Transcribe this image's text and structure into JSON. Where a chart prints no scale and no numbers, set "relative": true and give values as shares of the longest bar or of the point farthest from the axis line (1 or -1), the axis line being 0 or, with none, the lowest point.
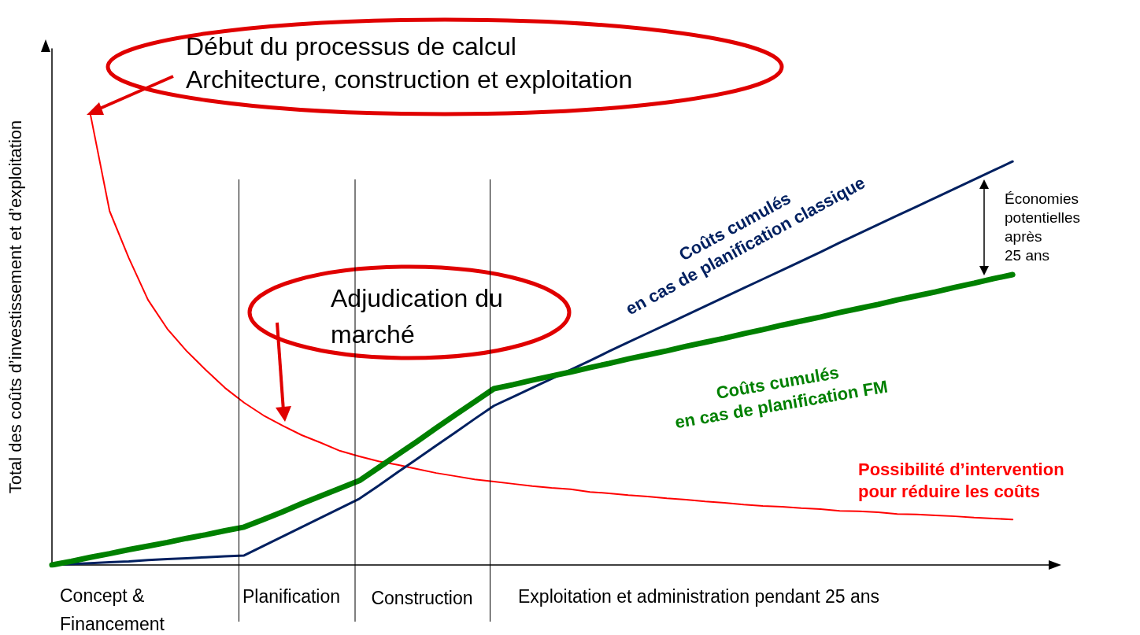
{
  "chart_data": {
    "type": "line",
    "relative": true,
    "ylabel": "Total des coûts d’investissement et d’exploitation",
    "legend": false,
    "grid": false,
    "marker": "none",
    "line_style": "solid",
    "categories": [
      null,
      null,
      null,
      null,
      null,
      null,
      null,
      null,
      null,
      null,
      null,
      null,
      null,
      null,
      null,
      null,
      null,
      null,
      null,
      null,
      null,
      null,
      null,
      null,
      null,
      null,
      null,
      null,
      null,
      null,
      null,
      null,
      null,
      null,
      null,
      null,
      null,
      null,
      null,
      null,
      null,
      null,
      null,
      null,
      null,
      null,
      null,
      null,
      null,
      null,
      null,
      null,
      null
    ],
    "series": [
      {
        "name": "Possibilité d’intervention\npour réduire les coûts",
        "color": "#ff0000",
        "values": [
          null,
          null,
          1.0,
          0.785,
          0.681,
          0.588,
          0.524,
          0.475,
          0.433,
          0.393,
          0.36,
          0.332,
          0.309,
          0.288,
          0.271,
          0.253,
          0.241,
          0.23,
          0.222,
          0.213,
          0.204,
          0.197,
          0.19,
          0.185,
          0.18,
          0.175,
          0.171,
          0.168,
          0.162,
          0.159,
          0.155,
          0.152,
          0.148,
          0.145,
          0.141,
          0.138,
          0.134,
          0.131,
          0.129,
          0.126,
          0.124,
          0.12,
          0.119,
          0.117,
          0.113,
          0.112,
          0.11,
          0.108,
          0.105,
          0.103,
          0.101,
          null,
          null
        ]
      },
      {
        "name": "Coûts cumulés\nen cas de planification classique",
        "color": "#002060",
        "values": [
          0,
          0.002,
          0.004,
          0.006,
          0.008,
          0.011,
          0.013,
          0.015,
          0.017,
          0.019,
          0.021,
          0.042,
          0.063,
          0.084,
          0.105,
          0.126,
          0.147,
          0.176,
          0.206,
          0.235,
          0.265,
          0.294,
          0.324,
          0.353,
          0.373,
          0.393,
          0.413,
          0.433,
          0.453,
          0.474,
          0.494,
          0.514,
          0.534,
          0.554,
          0.574,
          0.594,
          0.614,
          0.634,
          0.654,
          0.674,
          0.694,
          0.715,
          0.735,
          0.755,
          0.775,
          0.795,
          0.815,
          0.835,
          0.855,
          0.875,
          0.895,
          null,
          null
        ]
      },
      {
        "name": "Coûts cumulés\nen cas de planification FM",
        "color": "#008000",
        "values": [
          0,
          0.008,
          0.017,
          0.025,
          0.034,
          0.042,
          0.05,
          0.059,
          0.067,
          0.076,
          0.084,
          0.101,
          0.118,
          0.136,
          0.153,
          0.17,
          0.187,
          0.216,
          0.245,
          0.274,
          0.304,
          0.333,
          0.362,
          0.391,
          0.4,
          0.41,
          0.419,
          0.428,
          0.438,
          0.447,
          0.457,
          0.466,
          0.475,
          0.485,
          0.494,
          0.503,
          0.513,
          0.522,
          0.532,
          0.541,
          0.55,
          0.56,
          0.569,
          0.578,
          0.588,
          0.597,
          0.606,
          0.616,
          0.625,
          0.635,
          0.644,
          null,
          null
        ]
      }
    ],
    "annotations": [
      "Début du processus de calcul\nArchitecture, construction et exploitation",
      "Adjudication du\nmarché",
      "Économies\npotentielles\naprès\n25 ans",
      "Concept &\nFinancement",
      "Planification",
      "Construction",
      "Exploitation et administration pendant 25 ans"
    ]
  }
}
